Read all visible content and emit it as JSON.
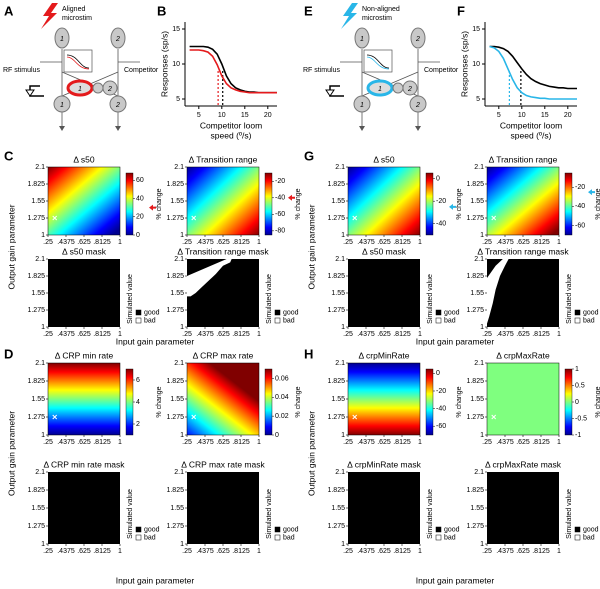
{
  "labels": {
    "output": "Output gain parameter",
    "input": "Input gain parameter",
    "pct": "% change",
    "sim": "Simulated value",
    "good": "good",
    "bad": "bad"
  },
  "gain_ticks": {
    "xlim": [
      0.25,
      1
    ],
    "ylim": [
      1,
      2.1
    ],
    "xticks": [
      {
        "value": 0.25,
        "label": ".25"
      },
      {
        "value": 0.4375,
        "label": ".4375"
      },
      {
        "value": 0.625,
        "label": ".625"
      },
      {
        "value": 0.8125,
        "label": ".8125"
      },
      1
    ],
    "yticks": [
      1,
      1.275,
      1.55,
      1.825,
      2.1
    ]
  },
  "panel_a": {
    "letter": "A",
    "stim": [
      "Aligned",
      "microstim"
    ],
    "rf": "RF stimulus",
    "competitor": "Competitor",
    "unit1": "1",
    "unit2": "2"
  },
  "panel_b": {
    "letter": "B",
    "type": "line",
    "ylabel": "Responses (sp/s)",
    "xlabel": [
      "Competitor loom",
      "speed (º/s)"
    ],
    "xlim": [
      2,
      22
    ],
    "ylim": [
      4,
      16
    ],
    "xticks": [
      5,
      10,
      15,
      20
    ],
    "yticks": [
      5,
      10,
      15
    ],
    "x": [
      3,
      4,
      5,
      6,
      7,
      8,
      9,
      10,
      11,
      12,
      13,
      14,
      15,
      16,
      17,
      18,
      19,
      20,
      21,
      22
    ],
    "series": [
      {
        "color": "#000000",
        "values": [
          12.5,
          12.5,
          12.5,
          12.5,
          12.4,
          12.1,
          11.4,
          10,
          8.3,
          7.2,
          6.6,
          6.3,
          6.1,
          6,
          6,
          5.9,
          5.9,
          5.9,
          5.9,
          5.9
        ]
      },
      {
        "color": "#e41a1c",
        "values": [
          12,
          12,
          12,
          11.9,
          11.7,
          11.1,
          9.9,
          8.3,
          7.2,
          6.6,
          6.3,
          6.1,
          6,
          5.9,
          5.9,
          5.9,
          5.9,
          5.9,
          5.9,
          5.9
        ]
      }
    ],
    "s50": [
      {
        "color": "#000000",
        "value": 10.2
      },
      {
        "color": "#e41a1c",
        "value": 9.2
      }
    ]
  },
  "panel_c": {
    "letter": "C",
    "maps": [
      {
        "title": "Δ s50",
        "clim": [
          0,
          68
        ],
        "cticks": [
          0,
          20,
          40,
          60
        ],
        "arrow": 30,
        "arrow_color": "#e41a1c"
      },
      {
        "title": "Δ Transition range",
        "clim": [
          -85,
          -10
        ],
        "cticks": [
          -80,
          -60,
          -40,
          -20
        ],
        "arrow": -40,
        "arrow_color": "#e41a1c"
      }
    ],
    "masks": [
      "Δ s50 mask",
      "Δ Transition range mask"
    ]
  },
  "panel_d": {
    "letter": "D",
    "maps": [
      {
        "title": "Δ CRP min rate",
        "clim": [
          1,
          7
        ],
        "cticks": [
          2,
          4,
          6
        ]
      },
      {
        "title": "Δ CRP max rate",
        "clim": [
          0,
          0.07
        ],
        "cticks": [
          0,
          0.02,
          0.04,
          0.06
        ]
      }
    ],
    "masks": [
      "Δ CRP min rate mask",
      "Δ CRP max rate mask"
    ]
  },
  "panel_e": {
    "letter": "E",
    "stim": [
      "Non-aligned",
      "microstim"
    ],
    "rf": "RF stimulus",
    "competitor": "Competitor",
    "unit1": "1",
    "unit2": "2"
  },
  "panel_f": {
    "letter": "F",
    "type": "line",
    "ylabel": "Responses (sp/s)",
    "xlabel": [
      "Competitor loom",
      "speed (º/s)"
    ],
    "xlim": [
      2,
      22
    ],
    "ylim": [
      4,
      16
    ],
    "xticks": [
      5,
      10,
      15,
      20
    ],
    "yticks": [
      5,
      10,
      15
    ],
    "x": [
      3,
      4,
      5,
      6,
      7,
      8,
      9,
      10,
      11,
      12,
      13,
      14,
      15,
      16,
      17,
      18,
      19,
      20,
      21,
      22
    ],
    "series": [
      {
        "color": "#000000",
        "values": [
          12.5,
          12.5,
          12.4,
          12.2,
          11.8,
          11.1,
          10.2,
          9.3,
          8.5,
          7.9,
          7.5,
          7.2,
          7,
          6.8,
          6.7,
          6.6,
          6.6,
          6.5,
          6.5,
          6.5
        ]
      },
      {
        "color": "#29b6e8",
        "values": [
          12.5,
          12.3,
          11.8,
          10.8,
          9.3,
          7.8,
          6.6,
          5.9,
          5.5,
          5.3,
          5.2,
          5.1,
          5.1,
          5,
          5,
          5,
          5,
          5,
          5,
          5
        ]
      }
    ],
    "s50": [
      {
        "color": "#000000",
        "value": 9.8
      },
      {
        "color": "#29b6e8",
        "value": 7.3
      }
    ]
  },
  "panel_g": {
    "letter": "G",
    "maps": [
      {
        "title": "Δ s50",
        "clim": [
          -50,
          5
        ],
        "cticks": [
          -40,
          -20,
          0
        ],
        "arrow": -25,
        "arrow_color": "#29b6e8"
      },
      {
        "title": "Δ Transition range",
        "clim": [
          -70,
          -5
        ],
        "cticks": [
          -60,
          -40,
          -20
        ],
        "arrow": -25,
        "arrow_color": "#29b6e8"
      }
    ],
    "masks": [
      "Δ s50 mask",
      "Δ Transition range mask"
    ]
  },
  "panel_h": {
    "letter": "H",
    "maps": [
      {
        "title": "Δ crpMinRate",
        "clim": [
          -70,
          5
        ],
        "cticks": [
          -60,
          -40,
          -20,
          0
        ]
      },
      {
        "title": "Δ crpMaxRate",
        "clim": [
          -1,
          1
        ],
        "cticks": [
          -1,
          -0.5,
          0,
          0.5,
          1
        ]
      }
    ],
    "masks": [
      "Δ crpMinRate mask",
      "Δ crpMaxRate mask"
    ]
  }
}
